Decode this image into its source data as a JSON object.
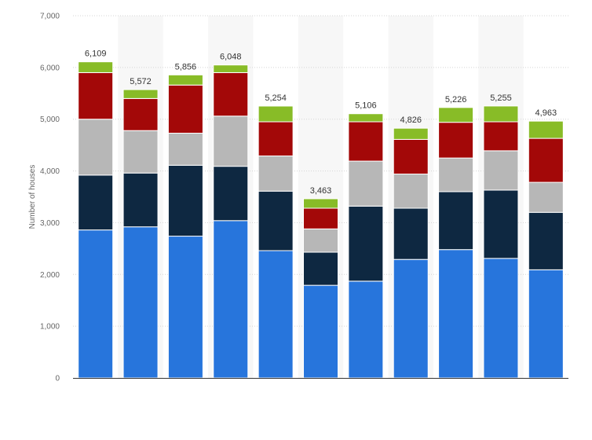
{
  "chart_data": {
    "type": "bar",
    "stacked": true,
    "title": "",
    "xlabel": "",
    "ylabel": "Number of houses",
    "ylim": [
      0,
      7000
    ],
    "yticks": [
      0,
      1000,
      2000,
      3000,
      4000,
      5000,
      6000,
      7000
    ],
    "ytick_labels": [
      "0",
      "1,000",
      "2,000",
      "3,000",
      "4,000",
      "5,000",
      "6,000",
      "7,000"
    ],
    "grid": true,
    "categories": [
      "",
      "",
      "",
      "",
      "",
      "",
      "",
      "",
      "",
      "",
      ""
    ],
    "series": [
      {
        "color": "#2775dc",
        "values": [
          2860,
          2920,
          2740,
          3040,
          2460,
          1790,
          1870,
          2290,
          2480,
          2310,
          2090
        ]
      },
      {
        "color": "#0e2841",
        "values": [
          1060,
          1040,
          1370,
          1050,
          1150,
          640,
          1450,
          990,
          1120,
          1320,
          1110
        ]
      },
      {
        "color": "#b7b7b7",
        "values": [
          1080,
          820,
          620,
          970,
          680,
          450,
          870,
          660,
          650,
          760,
          580
        ]
      },
      {
        "color": "#a30808",
        "values": [
          900,
          620,
          930,
          840,
          660,
          400,
          760,
          670,
          690,
          560,
          850
        ]
      },
      {
        "color": "#88bc27",
        "values": [
          209,
          172,
          196,
          148,
          304,
          183,
          156,
          216,
          286,
          305,
          333
        ]
      }
    ],
    "totals": [
      6109,
      5572,
      5856,
      6048,
      5254,
      3463,
      5106,
      4826,
      5226,
      5255,
      4963
    ],
    "total_labels": [
      "6,109",
      "5,572",
      "5,856",
      "6,048",
      "5,254",
      "3,463",
      "5,106",
      "4,826",
      "5,226",
      "5,255",
      "4,963"
    ]
  }
}
